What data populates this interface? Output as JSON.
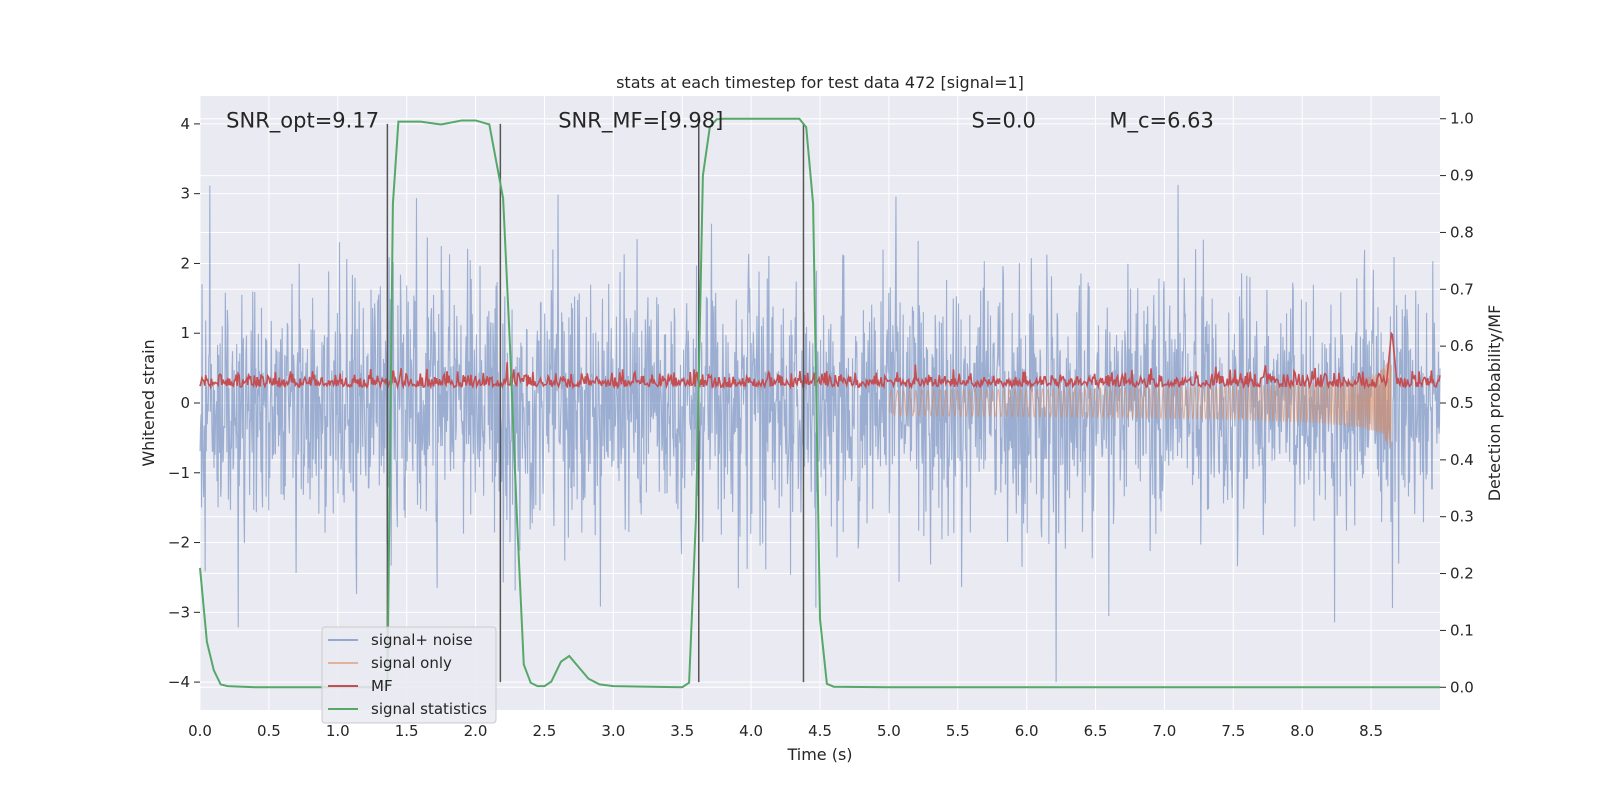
{
  "chart_data": {
    "type": "line",
    "title": "stats at each timestep for test data 472 [signal=1]",
    "xlabel": "Time (s)",
    "ylabel_left": "Whitened strain",
    "ylabel_right": "Detection probability/MF",
    "xlim": [
      0.0,
      9.0
    ],
    "ylim_left": [
      -4.4,
      4.4
    ],
    "ylim_right": [
      -0.04,
      1.04
    ],
    "xticks": [
      0.0,
      0.5,
      1.0,
      1.5,
      2.0,
      2.5,
      3.0,
      3.5,
      4.0,
      4.5,
      5.0,
      5.5,
      6.0,
      6.5,
      7.0,
      7.5,
      8.0,
      8.5
    ],
    "xtick_labels": [
      "0.0",
      "0.5",
      "1.0",
      "1.5",
      "2.0",
      "2.5",
      "3.0",
      "3.5",
      "4.0",
      "4.5",
      "5.0",
      "5.5",
      "6.0",
      "6.5",
      "7.0",
      "7.5",
      "8.0",
      "8.5"
    ],
    "yticks_left": [
      -4,
      -3,
      -2,
      -1,
      0,
      1,
      2,
      3,
      4
    ],
    "ytick_labels_left": [
      "−4",
      "−3",
      "−2",
      "−1",
      "0",
      "1",
      "2",
      "3",
      "4"
    ],
    "yticks_right": [
      0.0,
      0.1,
      0.2,
      0.3,
      0.4,
      0.5,
      0.6,
      0.7,
      0.8,
      0.9,
      1.0
    ],
    "ytick_labels_right": [
      "0.0",
      "0.1",
      "0.2",
      "0.3",
      "0.4",
      "0.5",
      "0.6",
      "0.7",
      "0.8",
      "0.9",
      "1.0"
    ],
    "annotations": [
      {
        "text": "SNR_opt=9.17",
        "x": 0.19,
        "y": 4.05
      },
      {
        "text": "SNR_MF=[9.98]",
        "x": 2.6,
        "y": 4.05
      },
      {
        "text": "S=0.0",
        "x": 5.6,
        "y": 4.05
      },
      {
        "text": "M_c=6.63",
        "x": 6.6,
        "y": 4.05
      }
    ],
    "vertical_lines": [
      1.36,
      2.18,
      3.62,
      4.38
    ],
    "series": [
      {
        "name": "signal+ noise",
        "color": "#4c72b0",
        "axis": "left",
        "style": "dense noise about 0, std ~0.9, range -4.0 to 4.0",
        "noise_std": 0.9
      },
      {
        "name": "signal only",
        "color": "#dd8452",
        "axis": "left",
        "style": "chirp ending near 8.65 s, peak ~1.0",
        "merger_time": 8.65,
        "peak_amplitude": 1.0
      },
      {
        "name": "MF",
        "color": "#c44e52",
        "axis": "right",
        "style": "around 0.53, spike ~0.63 at 8.65 s",
        "baseline": 0.53,
        "peak": 0.63,
        "peak_time": 8.65
      },
      {
        "name": "signal statistics",
        "color": "#55a868",
        "axis": "right",
        "x": [
          0.0,
          0.05,
          0.1,
          0.15,
          0.2,
          0.4,
          0.8,
          1.2,
          1.36,
          1.4,
          1.44,
          1.6,
          1.75,
          1.9,
          2.0,
          2.1,
          2.2,
          2.25,
          2.3,
          2.35,
          2.4,
          2.45,
          2.5,
          2.55,
          2.62,
          2.68,
          2.75,
          2.82,
          2.9,
          3.0,
          3.5,
          3.55,
          3.6,
          3.65,
          3.7,
          3.75,
          3.8,
          3.9,
          4.2,
          4.35,
          4.4,
          4.45,
          4.5,
          4.55,
          4.6,
          5.0,
          9.0
        ],
        "values": [
          0.21,
          0.08,
          0.03,
          0.005,
          0.002,
          0.0,
          0.0,
          0.0,
          0.0,
          0.85,
          0.995,
          0.995,
          0.99,
          0.997,
          0.997,
          0.99,
          0.86,
          0.6,
          0.3,
          0.04,
          0.008,
          0.002,
          0.002,
          0.01,
          0.045,
          0.055,
          0.035,
          0.015,
          0.005,
          0.002,
          0.0,
          0.008,
          0.3,
          0.9,
          0.985,
          0.999,
          1.0,
          1.0,
          1.0,
          1.0,
          0.985,
          0.85,
          0.12,
          0.006,
          0.001,
          0.0,
          0.0
        ]
      }
    ],
    "legend": {
      "position": "lower-left",
      "entries": [
        "signal+ noise",
        "signal only",
        "MF",
        "signal statistics"
      ]
    },
    "grid": true,
    "colors": {
      "background": "#eaeaf2",
      "grid": "#ffffff",
      "vline": "#555555",
      "text": "#262626"
    }
  }
}
